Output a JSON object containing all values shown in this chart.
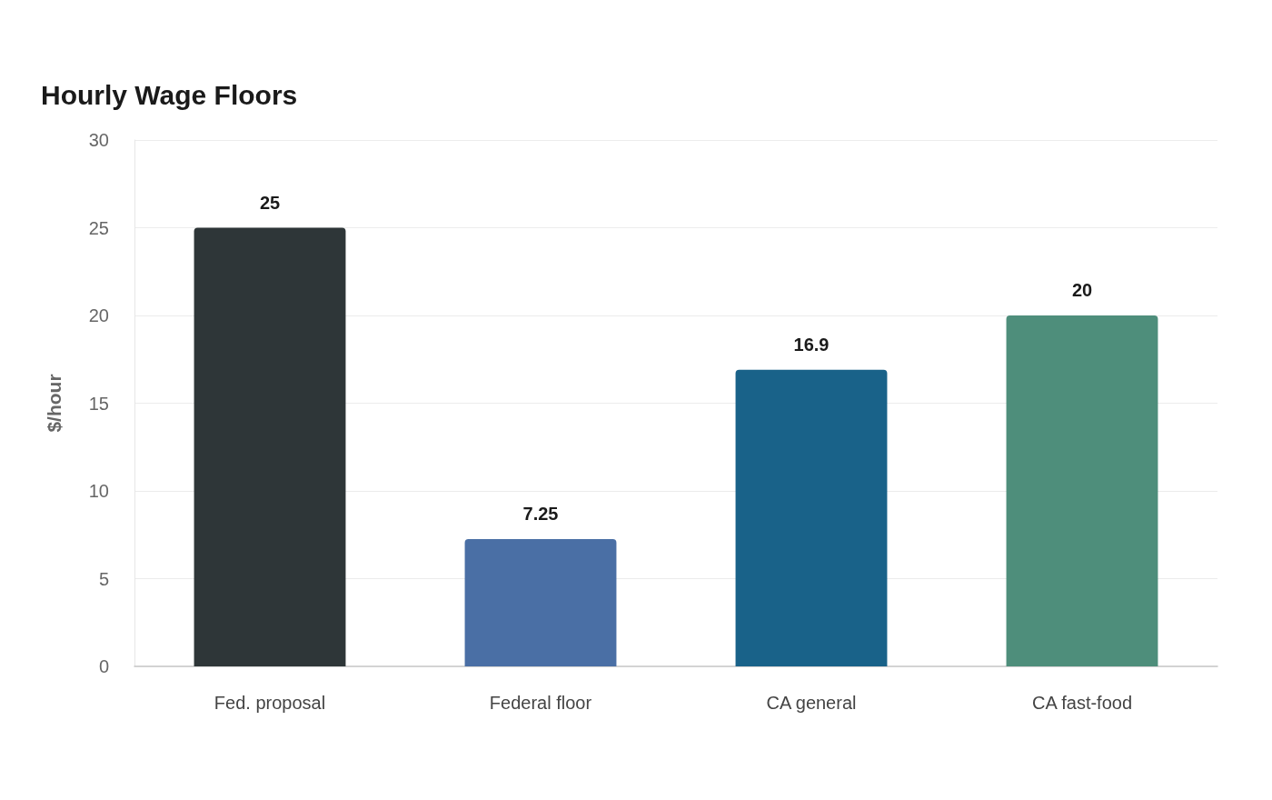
{
  "chart_data": {
    "type": "bar",
    "title": "Hourly Wage Floors",
    "ylabel": "$/hour",
    "categories": [
      "Fed. proposal",
      "Federal floor",
      "CA general",
      "CA fast-food"
    ],
    "values": [
      25,
      7.25,
      16.9,
      20
    ],
    "colors": [
      "#2e3638",
      "#4a6fa5",
      "#196289",
      "#4e8e7b"
    ],
    "ylim": [
      0,
      30
    ],
    "yticks": [
      0,
      5,
      10,
      15,
      20,
      25,
      30
    ],
    "grid": "y",
    "data_labels": true
  }
}
